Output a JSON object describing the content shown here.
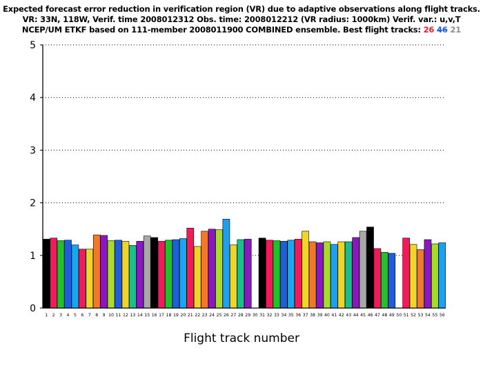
{
  "title": {
    "line1": "Expected forecast error reduction in verification region (VR) due to adaptive observations along flight tracks.",
    "line2": "VR: 33N, 118W, Verif. time 2008012312 Obs. time: 2008012212 (VR radius: 1000km)  Verif. var.: u,v,T",
    "line3_prefix": "NCEP/UM ETKF based on 111-member 2008011900 COMBINED ensemble.  Best flight tracks: ",
    "best_tracks": [
      "26",
      "46",
      "21"
    ]
  },
  "colors": {
    "best_1": "#e8232c",
    "best_2": "#1f5fe0",
    "best_3": "#8c8c8c"
  },
  "chart_data": {
    "type": "bar",
    "xlabel": "Flight track number",
    "ylabel": "",
    "ylim": [
      0,
      5
    ],
    "yticks": [
      0,
      1,
      2,
      3,
      4,
      5
    ],
    "grid": "dotted horizontal lines at integer values",
    "categories": [
      "1",
      "2",
      "3",
      "4",
      "5",
      "6",
      "7",
      "8",
      "9",
      "10",
      "11",
      "12",
      "13",
      "14",
      "15",
      "16",
      "17",
      "18",
      "19",
      "20",
      "21",
      "22",
      "23",
      "24",
      "25",
      "26",
      "27",
      "28",
      "29",
      "30",
      "31",
      "32",
      "33",
      "34",
      "35",
      "36",
      "37",
      "38",
      "39",
      "40",
      "41",
      "42",
      "43",
      "44",
      "45",
      "46",
      "47",
      "48",
      "49",
      "50",
      "51",
      "52",
      "53",
      "54",
      "55",
      "56"
    ],
    "values": [
      1.31,
      1.33,
      1.28,
      1.29,
      1.2,
      1.12,
      1.12,
      1.39,
      1.38,
      1.28,
      1.29,
      1.27,
      1.19,
      1.27,
      1.37,
      1.34,
      1.27,
      1.29,
      1.3,
      1.32,
      1.52,
      1.17,
      1.46,
      1.5,
      1.49,
      1.69,
      1.2,
      1.3,
      1.31,
      0,
      1.33,
      1.29,
      1.28,
      1.27,
      1.29,
      1.31,
      1.46,
      1.26,
      1.24,
      1.26,
      1.21,
      1.26,
      1.26,
      1.34,
      1.46,
      1.54,
      1.13,
      1.06,
      1.04,
      0,
      1.33,
      1.21,
      1.11,
      1.3,
      1.22,
      1.24
    ],
    "bar_colors": [
      "#000000",
      "#ee1c5a",
      "#22c02a",
      "#1e5ed9",
      "#16a7f0",
      "#ee1c5a",
      "#efd52b",
      "#f07a2a",
      "#8b17c2",
      "#a9dc2a",
      "#1e5ed9",
      "#efd52b",
      "#1dbd8c",
      "#8b17c2",
      "#a8a8a8",
      "#000000",
      "#ee1c5a",
      "#22c02a",
      "#1e5ed9",
      "#16a7f0",
      "#ee1c5a",
      "#efd52b",
      "#f07a2a",
      "#8b17c2",
      "#a9dc2a",
      "#1e9ff0",
      "#efd52b",
      "#1dbd8c",
      "#8b17c2",
      "#ffffff",
      "#000000",
      "#ee1c5a",
      "#22c02a",
      "#1e5ed9",
      "#16a7f0",
      "#ee1c5a",
      "#efd52b",
      "#f07a2a",
      "#8b17c2",
      "#a9dc2a",
      "#1e9ff0",
      "#efd52b",
      "#1dbd8c",
      "#8b17c2",
      "#a8a8a8",
      "#000000",
      "#ee1c5a",
      "#22c02a",
      "#1e5ed9",
      "#ffffff",
      "#ee1c5a",
      "#efd52b",
      "#f07a2a",
      "#8b17c2",
      "#a9dc2a",
      "#1e9ff0"
    ]
  }
}
